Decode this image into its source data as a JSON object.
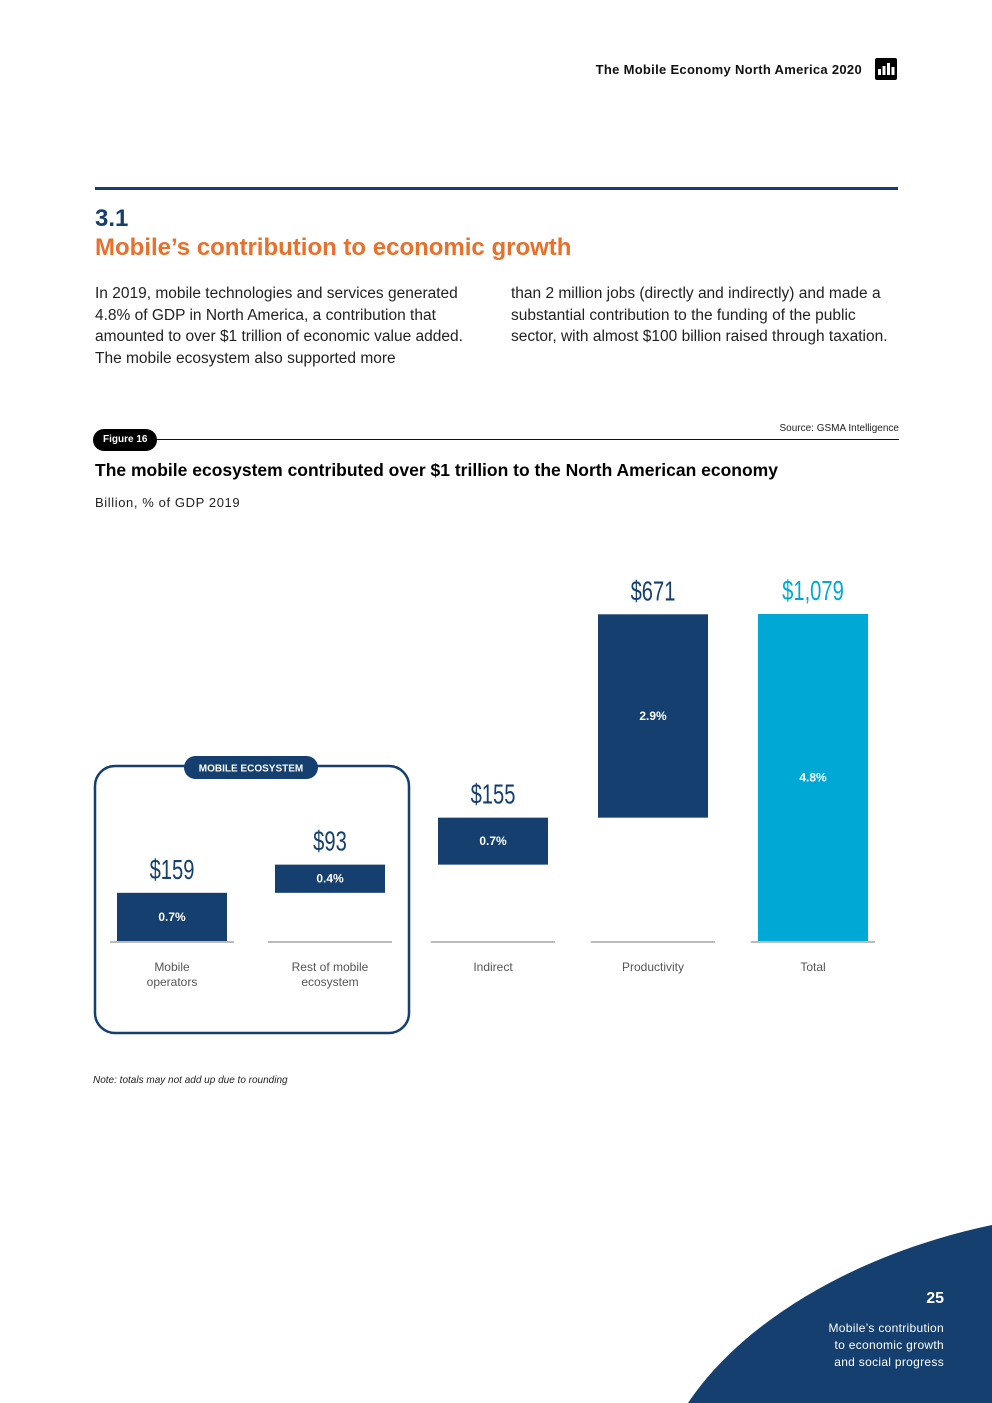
{
  "header": {
    "title": "The Mobile Economy North America 2020"
  },
  "section": {
    "number": "3.1",
    "title": "Mobile’s contribution to economic growth"
  },
  "body": {
    "col1": "In 2019, mobile technologies and services generated 4.8% of GDP in North America, a contribution that amounted to over $1 trillion of economic value added. The mobile ecosystem also supported more",
    "col2": "than 2 million jobs (directly and indirectly) and made a substantial contribution to the funding of the public sector, with almost $100 billion raised through taxation."
  },
  "figure": {
    "badge": "Figure 16",
    "source": "Source: GSMA Intelligence",
    "title": "The mobile ecosystem contributed over $1 trillion to the North American economy",
    "subtitle": "Billion, % of GDP 2019",
    "group_label": "MOBILE ECOSYSTEM",
    "note": "Note: totals may not add up due to rounding"
  },
  "chart_data": {
    "type": "bar",
    "subtype": "waterfall",
    "title": "The mobile ecosystem contributed over $1 trillion to the North American economy",
    "subtitle": "Billion, % of GDP 2019",
    "categories": [
      "Mobile operators",
      "Rest of mobile ecosystem",
      "Indirect",
      "Productivity",
      "Total"
    ],
    "values": [
      159,
      93,
      155,
      671,
      1079
    ],
    "value_labels": [
      "$159",
      "$93",
      "$155",
      "$671",
      "$1,079"
    ],
    "gdp_share_labels": [
      "0.7%",
      "0.4%",
      "0.7%",
      "2.9%",
      "4.8%"
    ],
    "bar_colors": [
      "#143f6e",
      "#143f6e",
      "#143f6e",
      "#143f6e",
      "#00a8d6"
    ],
    "total_index": 4,
    "ylim": [
      0,
      1079
    ],
    "grid": false
  },
  "footer": {
    "page_number": "25",
    "chapter_lines": [
      "Mobile’s contribution",
      "to economic growth",
      "and social progress"
    ]
  },
  "colors": {
    "navy": "#143f6e",
    "orange": "#e8702a",
    "cyan": "#00a8d6"
  }
}
